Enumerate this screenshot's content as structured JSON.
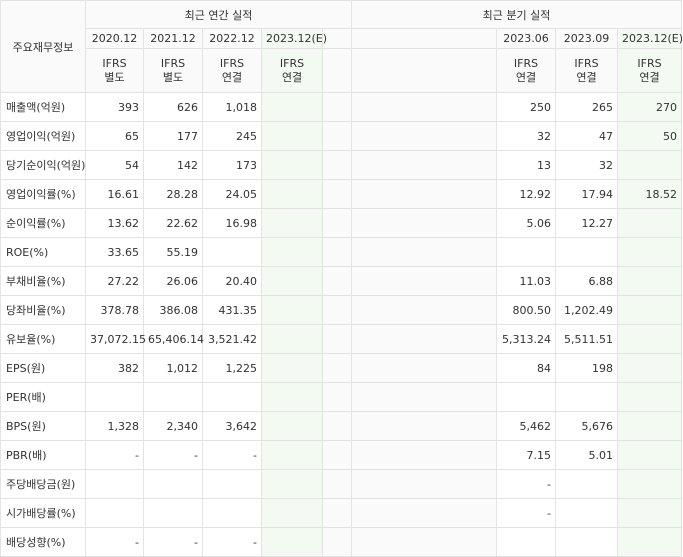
{
  "header": {
    "row_label": "주요재무정보",
    "annual_title": "최근 연간 실적",
    "quarter_title": "최근 분기 실적",
    "annual_periods": [
      "2020.12",
      "2021.12",
      "2022.12",
      "2023.12(E)"
    ],
    "quarter_periods": [
      "2023.06",
      "2023.09",
      "2023.12(E)"
    ],
    "annual_ifrs": [
      [
        "IFRS",
        "별도"
      ],
      [
        "IFRS",
        "별도"
      ],
      [
        "IFRS",
        "연결"
      ],
      [
        "IFRS",
        "연결"
      ]
    ],
    "quarter_ifrs": [
      [
        "IFRS",
        "연결"
      ],
      [
        "IFRS",
        "연결"
      ],
      [
        "IFRS",
        "연결"
      ]
    ]
  },
  "rows": [
    {
      "label": "매출액(억원)",
      "annual": [
        "393",
        "626",
        "1,018",
        ""
      ],
      "quarter": [
        "250",
        "265",
        "270"
      ]
    },
    {
      "label": "영업이익(억원)",
      "annual": [
        "65",
        "177",
        "245",
        ""
      ],
      "quarter": [
        "32",
        "47",
        "50"
      ]
    },
    {
      "label": "당기순이익(억원)",
      "annual": [
        "54",
        "142",
        "173",
        ""
      ],
      "quarter": [
        "13",
        "32",
        ""
      ]
    },
    {
      "label": "영업이익률(%)",
      "annual": [
        "16.61",
        "28.28",
        "24.05",
        ""
      ],
      "quarter": [
        "12.92",
        "17.94",
        "18.52"
      ]
    },
    {
      "label": "순이익률(%)",
      "annual": [
        "13.62",
        "22.62",
        "16.98",
        ""
      ],
      "quarter": [
        "5.06",
        "12.27",
        ""
      ]
    },
    {
      "label": "ROE(%)",
      "annual": [
        "33.65",
        "55.19",
        "",
        ""
      ],
      "quarter": [
        "",
        "",
        ""
      ]
    },
    {
      "label": "부채비율(%)",
      "annual": [
        "27.22",
        "26.06",
        "20.40",
        ""
      ],
      "quarter": [
        "11.03",
        "6.88",
        ""
      ]
    },
    {
      "label": "당좌비율(%)",
      "annual": [
        "378.78",
        "386.08",
        "431.35",
        ""
      ],
      "quarter": [
        "800.50",
        "1,202.49",
        ""
      ]
    },
    {
      "label": "유보율(%)",
      "annual": [
        "37,072.15",
        "65,406.14",
        "3,521.42",
        ""
      ],
      "quarter": [
        "5,313.24",
        "5,511.51",
        ""
      ]
    },
    {
      "label": "EPS(원)",
      "annual": [
        "382",
        "1,012",
        "1,225",
        ""
      ],
      "quarter": [
        "84",
        "198",
        ""
      ]
    },
    {
      "label": "PER(배)",
      "annual": [
        "",
        "",
        "",
        ""
      ],
      "quarter": [
        "",
        "",
        ""
      ]
    },
    {
      "label": "BPS(원)",
      "annual": [
        "1,328",
        "2,340",
        "3,642",
        ""
      ],
      "quarter": [
        "5,462",
        "5,676",
        ""
      ]
    },
    {
      "label": "PBR(배)",
      "annual": [
        "-",
        "-",
        "-",
        ""
      ],
      "quarter": [
        "7.15",
        "5.01",
        ""
      ]
    },
    {
      "label": "주당배당금(원)",
      "annual": [
        "",
        "",
        "",
        ""
      ],
      "quarter": [
        "-",
        "",
        ""
      ]
    },
    {
      "label": "시가배당률(%)",
      "annual": [
        "",
        "",
        "",
        ""
      ],
      "quarter": [
        "-",
        "",
        ""
      ]
    },
    {
      "label": "배당성향(%)",
      "annual": [
        "-",
        "-",
        "-",
        ""
      ],
      "quarter": [
        "",
        "",
        ""
      ]
    }
  ],
  "group_starts": [
    3,
    6,
    9,
    13
  ]
}
